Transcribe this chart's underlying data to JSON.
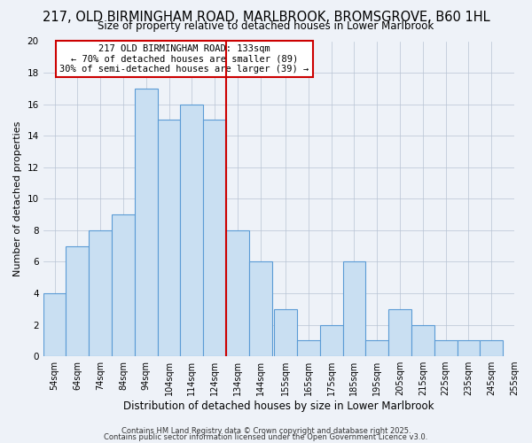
{
  "title": "217, OLD BIRMINGHAM ROAD, MARLBROOK, BROMSGROVE, B60 1HL",
  "subtitle": "Size of property relative to detached houses in Lower Marlbrook",
  "xlabel": "Distribution of detached houses by size in Lower Marlbrook",
  "ylabel": "Number of detached properties",
  "bin_lefts": [
    54,
    64,
    74,
    84,
    94,
    104,
    114,
    124,
    134,
    144,
    155,
    165,
    175,
    185,
    195,
    205,
    215,
    225,
    235,
    245
  ],
  "bin_width": 10,
  "bin_labels": [
    "54sqm",
    "64sqm",
    "74sqm",
    "84sqm",
    "94sqm",
    "104sqm",
    "114sqm",
    "124sqm",
    "134sqm",
    "144sqm",
    "155sqm",
    "165sqm",
    "175sqm",
    "185sqm",
    "195sqm",
    "205sqm",
    "215sqm",
    "225sqm",
    "235sqm",
    "245sqm",
    "255sqm"
  ],
  "counts": [
    4,
    7,
    8,
    9,
    17,
    15,
    16,
    15,
    8,
    6,
    3,
    1,
    2,
    6,
    1,
    3,
    2,
    1,
    1,
    1
  ],
  "bar_color": "#c9dff2",
  "bar_edge_color": "#5b9bd5",
  "vline_x": 134,
  "vline_color": "#cc0000",
  "ylim": [
    0,
    20
  ],
  "xlim_left": 54,
  "xlim_right": 255,
  "annotation_title": "217 OLD BIRMINGHAM ROAD: 133sqm",
  "annotation_line1": "← 70% of detached houses are smaller (89)",
  "annotation_line2": "30% of semi-detached houses are larger (39) →",
  "annotation_box_edge": "#cc0000",
  "background_color": "#eef2f8",
  "footer1": "Contains HM Land Registry data © Crown copyright and database right 2025.",
  "footer2": "Contains public sector information licensed under the Open Government Licence v3.0.",
  "title_fontsize": 10.5,
  "subtitle_fontsize": 8.5,
  "xlabel_fontsize": 8.5,
  "ylabel_fontsize": 8.0,
  "tick_fontsize": 7.0,
  "annotation_fontsize": 7.5,
  "footer_fontsize": 6.0
}
